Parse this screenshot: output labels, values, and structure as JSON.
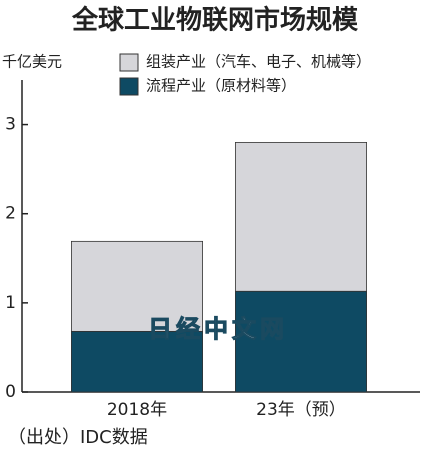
{
  "chart_data": {
    "type": "bar",
    "stacked": true,
    "title": "全球工业物联网市场规模",
    "y_label": "千亿美元",
    "categories": [
      "2018年",
      "23年（预）"
    ],
    "series": [
      {
        "name": "组装产业（汽车、电子、机械等）",
        "color": "#d6d6da",
        "values": [
          1.01,
          1.67
        ]
      },
      {
        "name": "流程产业（原材料等）",
        "color": "#0e4a63",
        "values": [
          0.68,
          1.13
        ]
      }
    ],
    "ylim": [
      0,
      3.5
    ],
    "yticks": [
      0,
      1,
      2,
      3
    ],
    "source": "（出处）IDC数据",
    "watermark": "日经中文网"
  }
}
